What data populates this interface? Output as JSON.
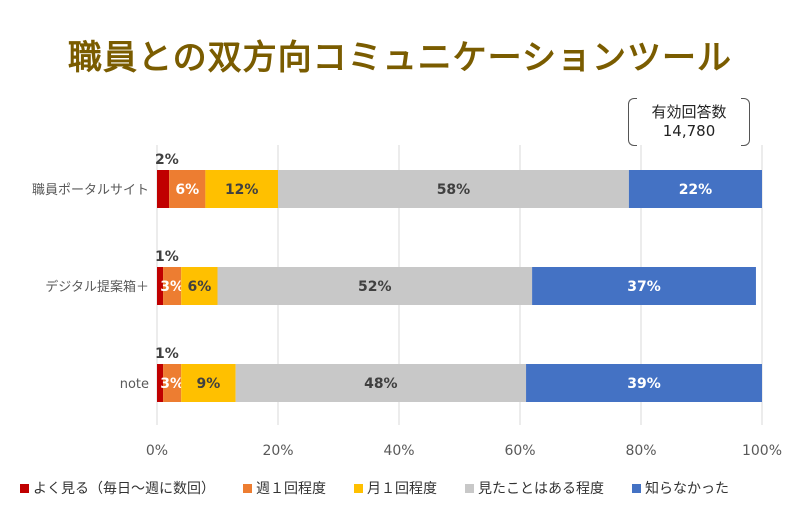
{
  "chart_data": {
    "type": "bar",
    "orientation": "horizontal",
    "stacked": true,
    "title": "職員との双方向コミュニケーションツール",
    "annotation": [
      "有効回答数",
      "14,780"
    ],
    "categories": [
      "職員ポータルサイト",
      "デジタル提案箱＋",
      "note"
    ],
    "series": [
      {
        "name": "よく見る（毎日〜週に数回）",
        "color": "#c00000",
        "values": [
          2,
          1,
          1
        ],
        "labels": [
          "2%",
          "1%",
          "1%"
        ]
      },
      {
        "name": "週１回程度",
        "color": "#ed7d31",
        "values": [
          6,
          3,
          3
        ],
        "labels": [
          "6%",
          "3%",
          "3%"
        ]
      },
      {
        "name": "月１回程度",
        "color": "#ffc000",
        "values": [
          12,
          6,
          9
        ],
        "labels": [
          "12%",
          "6%",
          "9%"
        ]
      },
      {
        "name": "見たことはある程度",
        "color": "#c8c8c8",
        "values": [
          58,
          52,
          48
        ],
        "labels": [
          "58%",
          "52%",
          "48%"
        ]
      },
      {
        "name": "知らなかった",
        "color": "#4472c4",
        "values": [
          22,
          37,
          39
        ],
        "labels": [
          "22%",
          "37%",
          "39%"
        ]
      }
    ],
    "xlim": [
      0,
      100
    ],
    "xticks": [
      "0%",
      "20%",
      "40%",
      "60%",
      "80%",
      "100%"
    ],
    "grid": true,
    "legend_position": "bottom"
  }
}
